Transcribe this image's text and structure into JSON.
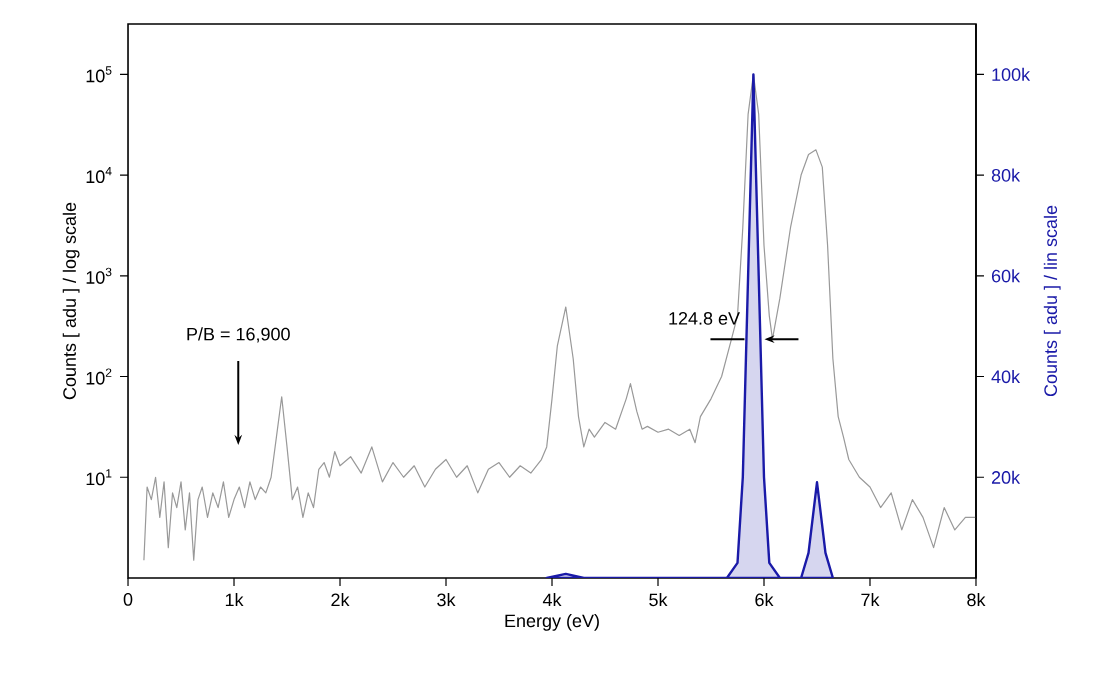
{
  "chart_data": {
    "type": "line",
    "xlabel": "Energy (eV)",
    "ylabel": "Counts [ adu ] / log scale",
    "y2label": "Counts [ adu ] / lin scale",
    "log": "y",
    "xlim": [
      0,
      8000
    ],
    "ylim": [
      1,
      316000
    ],
    "y2lim": [
      0,
      110000
    ],
    "xticks": [
      0,
      {
        "value": 1000,
        "label": "1k"
      },
      {
        "value": 2000,
        "label": "2k"
      },
      {
        "value": 3000,
        "label": "3k"
      },
      {
        "value": 4000,
        "label": "4k"
      },
      {
        "value": 5000,
        "label": "5k"
      },
      {
        "value": 6000,
        "label": "6k"
      },
      {
        "value": 7000,
        "label": "7k"
      },
      {
        "value": 8000,
        "label": "8k"
      }
    ],
    "yticks": [
      {
        "value": 10,
        "label": "10$^{1}$"
      },
      {
        "value": 100,
        "label": "10$^{2}$"
      },
      {
        "value": 1000,
        "label": "10$^{3}$"
      },
      {
        "value": 10000,
        "label": "10$^{4}$"
      },
      {
        "value": 100000,
        "label": "10$^{5}$"
      }
    ],
    "y2ticks": [
      {
        "value": 20000,
        "label": "20k"
      },
      {
        "value": 40000,
        "label": "40k"
      },
      {
        "value": 60000,
        "label": "60k"
      },
      {
        "value": 80000,
        "label": "80k"
      },
      {
        "value": 100000,
        "label": "100k"
      }
    ],
    "annotations": [
      "P/B = 16,900",
      {
        "text": "124.8 eV",
        "x": 5910,
        "y": 235
      }
    ],
    "series": [
      {
        "color": "#999999",
        "x": [
          150,
          180,
          220,
          260,
          300,
          340,
          380,
          420,
          460,
          500,
          540,
          580,
          620,
          660,
          700,
          750,
          800,
          850,
          900,
          950,
          1000,
          1050,
          1100,
          1150,
          1200,
          1250,
          1300,
          1350,
          1400,
          1450,
          1500,
          1550,
          1600,
          1650,
          1700,
          1750,
          1800,
          1850,
          1900,
          1950,
          2000,
          2100,
          2200,
          2300,
          2400,
          2500,
          2600,
          2700,
          2800,
          2900,
          3000,
          3100,
          3200,
          3300,
          3400,
          3500,
          3600,
          3700,
          3800,
          3900,
          3950,
          4000,
          4050,
          4130,
          4200,
          4250,
          4300,
          4350,
          4400,
          4500,
          4600,
          4700,
          4740,
          4800,
          4850,
          4900,
          5000,
          5100,
          5200,
          5300,
          5350,
          5400,
          5500,
          5600,
          5700,
          5750,
          5800,
          5850,
          5900,
          5950,
          6000,
          6050,
          6080,
          6150,
          6250,
          6350,
          6420,
          6490,
          6550,
          6600,
          6650,
          6700,
          6750,
          6800,
          6900,
          7000,
          7100,
          7200,
          7300,
          7400,
          7500,
          7600,
          7700,
          7800,
          7900,
          8000
        ],
        "values": [
          1.5,
          8,
          6,
          10,
          4,
          9,
          2,
          7,
          5,
          9,
          3,
          7,
          1.5,
          6,
          8,
          4,
          7,
          5,
          9,
          4,
          6,
          8,
          5,
          9,
          6,
          8,
          7,
          10,
          25,
          63,
          20,
          6,
          8,
          4,
          7,
          5,
          12,
          14,
          10,
          18,
          13,
          16,
          11,
          20,
          9,
          14,
          10,
          13,
          8,
          12,
          15,
          10,
          13,
          7,
          12,
          14,
          10,
          13,
          11,
          15,
          20,
          60,
          200,
          490,
          150,
          40,
          20,
          30,
          25,
          35,
          30,
          60,
          85,
          45,
          30,
          32,
          28,
          30,
          26,
          30,
          22,
          40,
          60,
          100,
          250,
          400,
          3000,
          40000,
          100000,
          40000,
          2000,
          400,
          235,
          600,
          3000,
          10000,
          16000,
          17800,
          12000,
          2000,
          150,
          40,
          25,
          15,
          10,
          8,
          5,
          7,
          3,
          6,
          4,
          2,
          5,
          3,
          4,
          4
        ]
      },
      {
        "type": "area",
        "axis": "y2",
        "color": "#1a1aa8",
        "x": [
          3950,
          4130,
          4300,
          5650,
          5750,
          5800,
          5850,
          5900,
          5950,
          6000,
          6050,
          6150,
          6350,
          6420,
          6500,
          6580,
          6650
        ],
        "values": [
          0,
          800,
          0,
          0,
          3000,
          20000,
          60000,
          100000,
          60000,
          20000,
          3000,
          0,
          0,
          5000,
          19000,
          5000,
          0
        ]
      }
    ]
  }
}
